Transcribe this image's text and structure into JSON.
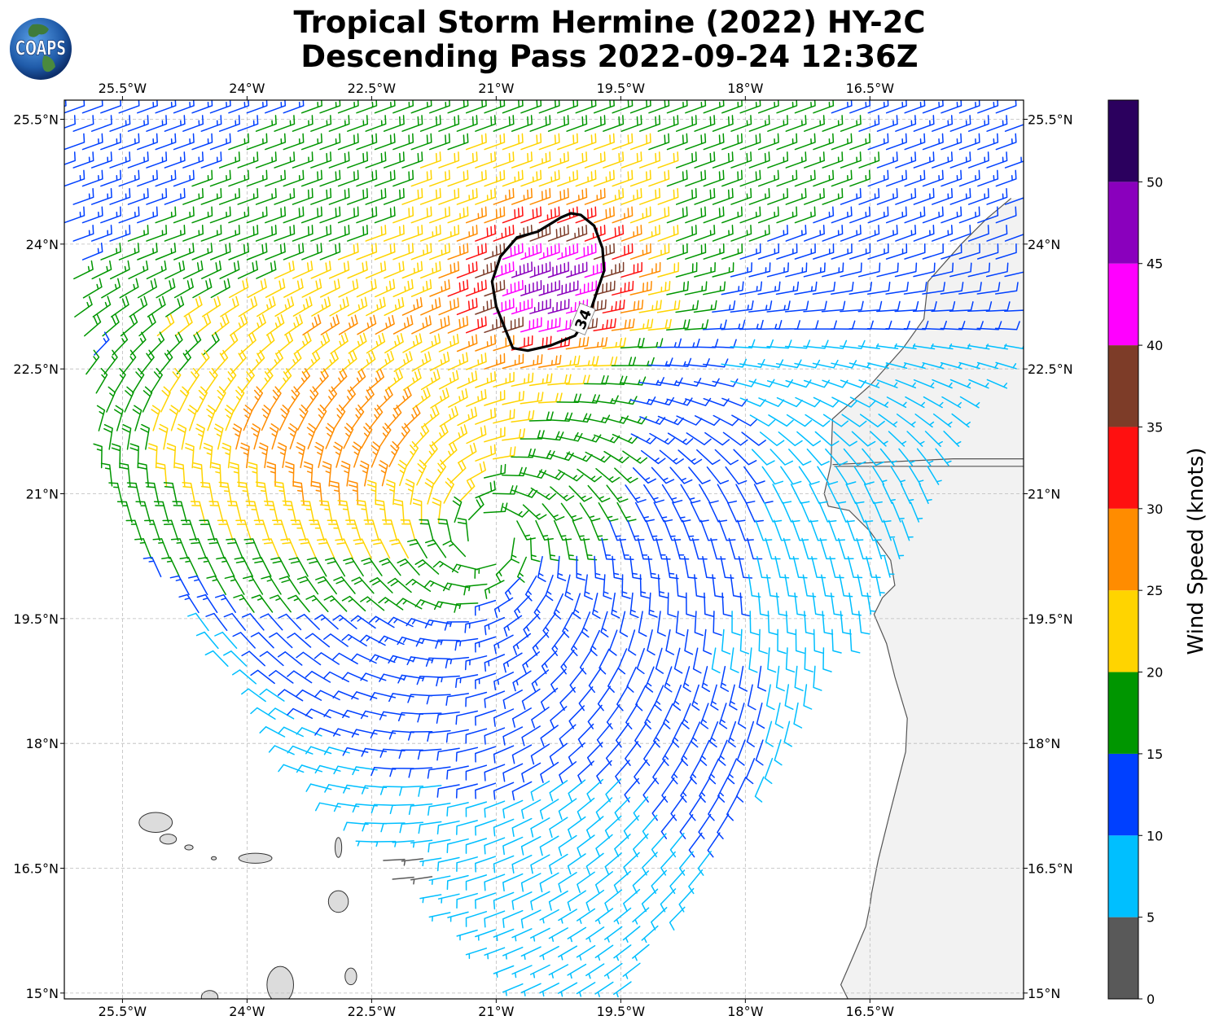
{
  "header": {
    "title_line1": "Tropical Storm Hermine (2022) HY-2C",
    "title_line2": "Descending Pass 2022-09-24 12:36Z",
    "logo_text": "COAPS"
  },
  "map": {
    "lon_range": [
      -26.2,
      -14.65
    ],
    "lat_range": [
      14.93,
      25.73
    ],
    "lon_ticks": [
      {
        "value": -25.5,
        "label": "25.5°W"
      },
      {
        "value": -24.0,
        "label": "24°W"
      },
      {
        "value": -22.5,
        "label": "22.5°W"
      },
      {
        "value": -21.0,
        "label": "21°W"
      },
      {
        "value": -19.5,
        "label": "19.5°W"
      },
      {
        "value": -18.0,
        "label": "18°W"
      },
      {
        "value": -16.5,
        "label": "16.5°W"
      }
    ],
    "lat_ticks": [
      {
        "value": 25.5,
        "label": "25.5°N"
      },
      {
        "value": 24.0,
        "label": "24°N"
      },
      {
        "value": 22.5,
        "label": "22.5°N"
      },
      {
        "value": 21.0,
        "label": "21°N"
      },
      {
        "value": 19.5,
        "label": "19.5°N"
      },
      {
        "value": 18.0,
        "label": "18°N"
      },
      {
        "value": 16.5,
        "label": "16.5°N"
      },
      {
        "value": 15.0,
        "label": "15°N"
      }
    ],
    "gridlines": true,
    "storm_center": {
      "lon": -21.1,
      "lat": 20.5
    },
    "contour": {
      "label": "34",
      "value_knots": 34,
      "points": [
        [
          -20.22,
          24.32
        ],
        [
          -20.5,
          24.15
        ],
        [
          -20.75,
          24.08
        ],
        [
          -20.95,
          23.85
        ],
        [
          -21.05,
          23.55
        ],
        [
          -21.0,
          23.25
        ],
        [
          -20.9,
          23.0
        ],
        [
          -20.8,
          22.75
        ],
        [
          -20.62,
          22.72
        ],
        [
          -20.35,
          22.78
        ],
        [
          -20.05,
          22.9
        ],
        [
          -19.88,
          23.15
        ],
        [
          -19.78,
          23.45
        ],
        [
          -19.7,
          23.68
        ],
        [
          -19.72,
          23.95
        ],
        [
          -19.82,
          24.22
        ],
        [
          -19.98,
          24.35
        ],
        [
          -20.1,
          24.37
        ]
      ]
    },
    "coast": [
      [
        -16.75,
        14.9
      ],
      [
        -16.85,
        15.1
      ],
      [
        -16.72,
        15.4
      ],
      [
        -16.55,
        15.8
      ],
      [
        -16.5,
        16.05
      ],
      [
        -16.48,
        16.2
      ],
      [
        -16.4,
        16.6
      ],
      [
        -16.25,
        17.2
      ],
      [
        -16.07,
        17.9
      ],
      [
        -16.05,
        18.3
      ],
      [
        -16.2,
        18.8
      ],
      [
        -16.3,
        19.2
      ],
      [
        -16.45,
        19.55
      ],
      [
        -16.35,
        19.75
      ],
      [
        -16.2,
        19.9
      ],
      [
        -16.25,
        20.2
      ],
      [
        -16.5,
        20.55
      ],
      [
        -16.75,
        20.8
      ],
      [
        -17.0,
        20.85
      ],
      [
        -17.05,
        21.0
      ],
      [
        -16.97,
        21.35
      ],
      [
        -16.95,
        21.9
      ],
      [
        -16.5,
        22.3
      ],
      [
        -16.1,
        22.75
      ],
      [
        -15.85,
        23.1
      ],
      [
        -15.8,
        23.55
      ],
      [
        -15.4,
        24.0
      ],
      [
        -15.1,
        24.3
      ],
      [
        -14.8,
        24.55
      ]
    ],
    "borders": [
      [
        [
          -16.95,
          21.35
        ],
        [
          -15.5,
          21.42
        ],
        [
          -14.65,
          21.42
        ]
      ],
      [
        [
          -16.93,
          21.33
        ],
        [
          -14.65,
          21.33
        ]
      ]
    ],
    "islands": [
      {
        "lon": -25.1,
        "lat": 17.05,
        "rx": 0.2,
        "ry": 0.12
      },
      {
        "lon": -24.95,
        "lat": 16.85,
        "rx": 0.1,
        "ry": 0.06
      },
      {
        "lon": -24.7,
        "lat": 16.75,
        "rx": 0.05,
        "ry": 0.03
      },
      {
        "lon": -24.4,
        "lat": 16.62,
        "rx": 0.03,
        "ry": 0.02
      },
      {
        "lon": -23.9,
        "lat": 16.62,
        "rx": 0.2,
        "ry": 0.06
      },
      {
        "lon": -22.9,
        "lat": 16.75,
        "rx": 0.04,
        "ry": 0.12
      },
      {
        "lon": -22.9,
        "lat": 16.1,
        "rx": 0.12,
        "ry": 0.13
      },
      {
        "lon": -23.6,
        "lat": 15.1,
        "rx": 0.16,
        "ry": 0.22
      },
      {
        "lon": -22.75,
        "lat": 15.2,
        "rx": 0.07,
        "ry": 0.1
      },
      {
        "lon": -24.45,
        "lat": 14.95,
        "rx": 0.1,
        "ry": 0.08
      }
    ]
  },
  "colorbar": {
    "label": "Wind Speed (knots)",
    "colors": [
      "#595959",
      "#00bfff",
      "#0040ff",
      "#009600",
      "#ffd400",
      "#ff8c00",
      "#ff1010",
      "#7d3c28",
      "#ff00ff",
      "#8a00bd",
      "#2b005e"
    ],
    "boundaries": [
      0,
      5,
      10,
      15,
      20,
      25,
      30,
      35,
      40,
      45,
      50,
      55
    ],
    "tick_values": [
      0,
      5,
      10,
      15,
      20,
      25,
      30,
      35,
      40,
      45,
      50
    ],
    "tick_labels": [
      "0",
      "5",
      "10",
      "15",
      "20",
      "25",
      "30",
      "35",
      "40",
      "45",
      "50"
    ]
  }
}
